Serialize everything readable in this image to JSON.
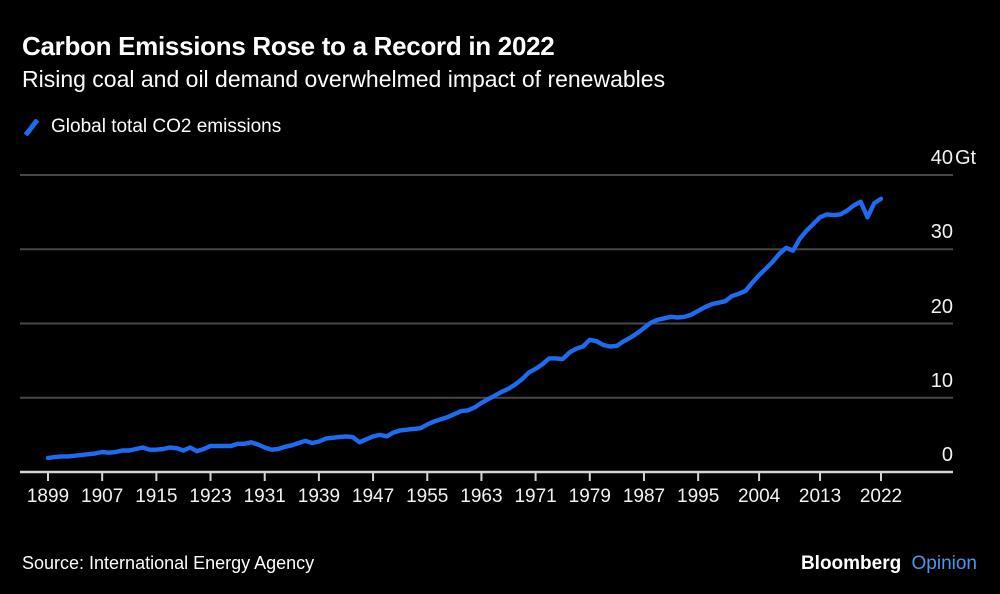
{
  "header": {
    "title": "Carbon Emissions Rose to a Record in 2022",
    "subtitle": "Rising coal and oil demand overwhelmed impact of renewables"
  },
  "legend": {
    "marker_icon": "blue-slash-icon",
    "label": "Global total CO2 emissions"
  },
  "footer": {
    "source": "Source: International Energy Agency",
    "brand": "Bloomberg",
    "brand_suffix": "Opinion"
  },
  "colors": {
    "background": "#000000",
    "line": "#1d6bf1",
    "grid": "#474747",
    "axis": "#d4d4d4",
    "axis_label_text": "#f2f2f2",
    "text": "#ffffff",
    "brand_suffix": "#4b96e8"
  },
  "chart_data": {
    "type": "line",
    "title": "Carbon Emissions Rose to a Record in 2022",
    "xlabel": "",
    "ylabel": "Gt",
    "unit": "Gt",
    "xlim": [
      1899,
      2022
    ],
    "ylim": [
      0,
      40
    ],
    "grid": "horizontal",
    "legend_position": "top-left",
    "x_tick_labels": [
      "1899",
      "1907",
      "1915",
      "1923",
      "1931",
      "1939",
      "1947",
      "1955",
      "1963",
      "1971",
      "1979",
      "1987",
      "1995",
      "2004",
      "2013",
      "2022"
    ],
    "y_ticks": [
      0,
      10,
      20,
      30,
      40
    ],
    "y_tick_labels": [
      "0",
      "10",
      "20",
      "30",
      "40Gt"
    ],
    "series": [
      {
        "name": "Global total CO2 emissions",
        "color": "#1d6bf1",
        "x": [
          1899,
          1900,
          1901,
          1902,
          1903,
          1904,
          1905,
          1906,
          1907,
          1908,
          1909,
          1910,
          1911,
          1912,
          1913,
          1914,
          1915,
          1916,
          1917,
          1918,
          1919,
          1920,
          1921,
          1922,
          1923,
          1924,
          1925,
          1926,
          1927,
          1928,
          1929,
          1930,
          1931,
          1932,
          1933,
          1934,
          1935,
          1936,
          1937,
          1938,
          1939,
          1940,
          1941,
          1942,
          1943,
          1944,
          1945,
          1946,
          1947,
          1948,
          1949,
          1950,
          1951,
          1952,
          1953,
          1954,
          1955,
          1956,
          1957,
          1958,
          1959,
          1960,
          1961,
          1962,
          1963,
          1964,
          1965,
          1966,
          1967,
          1968,
          1969,
          1970,
          1971,
          1972,
          1973,
          1974,
          1975,
          1976,
          1977,
          1978,
          1979,
          1980,
          1981,
          1982,
          1983,
          1984,
          1985,
          1986,
          1987,
          1988,
          1989,
          1990,
          1991,
          1992,
          1993,
          1994,
          1995,
          1996,
          1997,
          1998,
          1999,
          2000,
          2001,
          2002,
          2003,
          2004,
          2005,
          2006,
          2007,
          2008,
          2009,
          2010,
          2011,
          2012,
          2013,
          2014,
          2015,
          2016,
          2017,
          2018,
          2019,
          2020,
          2021,
          2022
        ],
        "values": [
          1.9,
          2.0,
          2.1,
          2.1,
          2.2,
          2.3,
          2.4,
          2.5,
          2.7,
          2.6,
          2.7,
          2.9,
          2.9,
          3.1,
          3.3,
          3.0,
          3.0,
          3.1,
          3.3,
          3.2,
          2.9,
          3.3,
          2.8,
          3.1,
          3.5,
          3.5,
          3.5,
          3.5,
          3.8,
          3.8,
          4.0,
          3.7,
          3.3,
          3.0,
          3.1,
          3.4,
          3.6,
          3.9,
          4.2,
          3.9,
          4.1,
          4.5,
          4.6,
          4.7,
          4.8,
          4.7,
          4.0,
          4.4,
          4.8,
          5.0,
          4.8,
          5.3,
          5.6,
          5.7,
          5.8,
          5.9,
          6.4,
          6.8,
          7.1,
          7.4,
          7.8,
          8.2,
          8.3,
          8.7,
          9.3,
          9.8,
          10.3,
          10.8,
          11.2,
          11.8,
          12.5,
          13.4,
          13.9,
          14.5,
          15.3,
          15.3,
          15.2,
          16.1,
          16.6,
          16.9,
          17.8,
          17.6,
          17.1,
          16.9,
          17.0,
          17.6,
          18.1,
          18.7,
          19.4,
          20.1,
          20.5,
          20.7,
          20.9,
          20.8,
          20.9,
          21.2,
          21.7,
          22.2,
          22.6,
          22.8,
          23.0,
          23.7,
          24.0,
          24.4,
          25.5,
          26.5,
          27.4,
          28.3,
          29.4,
          30.2,
          29.8,
          31.4,
          32.5,
          33.4,
          34.3,
          34.7,
          34.6,
          34.7,
          35.2,
          35.9,
          36.4,
          34.3,
          36.2,
          36.8
        ]
      }
    ]
  }
}
